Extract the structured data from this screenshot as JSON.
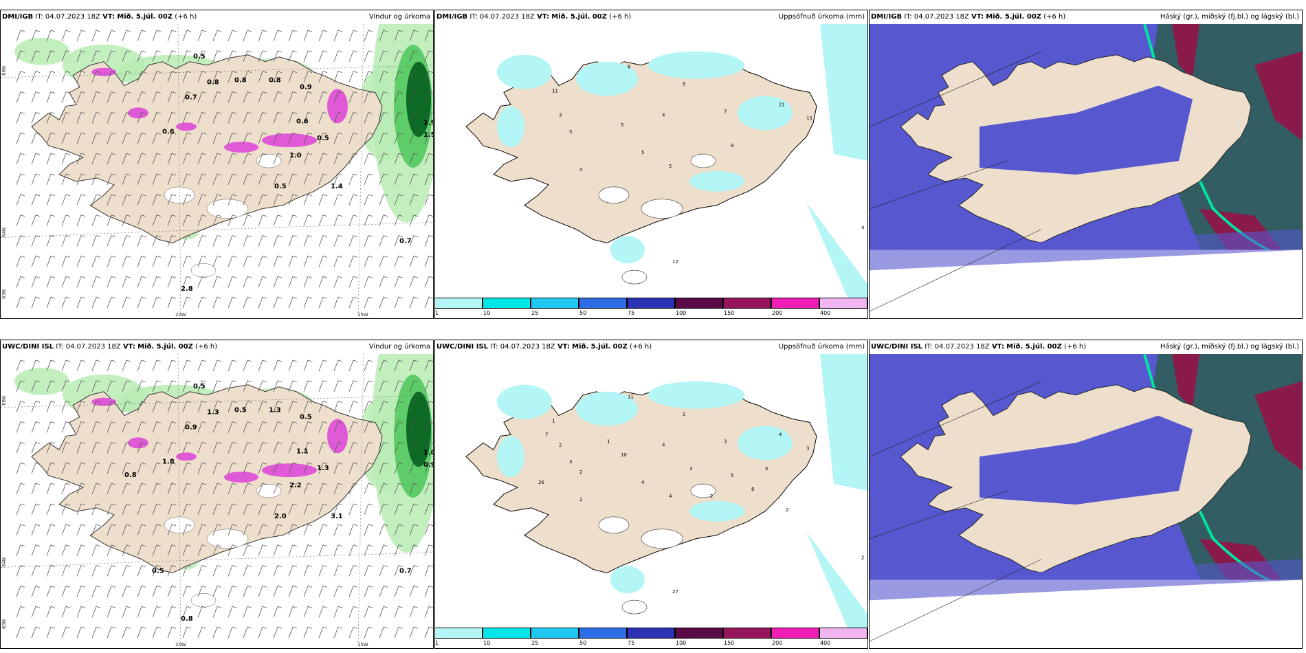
{
  "panels": [
    {
      "source": "DMI/IGB",
      "it": "IT: 04.07.2023 18Z",
      "vt_label": "VT:",
      "vt": "Mið. 5.júl. 00Z",
      "lead": "(+6 h)",
      "title": "Vindur og úrkoma",
      "type": "wind"
    },
    {
      "source": "DMI/IGB",
      "it": "IT: 04.07.2023 18Z",
      "vt_label": "VT:",
      "vt": "Mið. 5.júl. 00Z",
      "lead": "(+6 h)",
      "title": "Uppsöfnuð úrkoma (mm)",
      "type": "accum"
    },
    {
      "source": "DMI/IGB",
      "it": "IT: 04.07.2023 18Z",
      "vt_label": "VT:",
      "vt": "Mið. 5.júl. 00Z",
      "lead": "(+6 h)",
      "title": "Háský (gr.), miðský (fj.bl.) og lágský (bl.)",
      "type": "cloud"
    },
    {
      "source": "UWC/DINI ISL",
      "it": "IT: 04.07.2023 18Z",
      "vt_label": "VT:",
      "vt": "Mið. 5.júl. 00Z",
      "lead": "(+6 h)",
      "title": "Vindur og úrkoma",
      "type": "wind"
    },
    {
      "source": "UWC/DINI ISL",
      "it": "IT: 04.07.2023 18Z",
      "vt_label": "VT:",
      "vt": "Mið. 5.júl. 00Z",
      "lead": "(+6 h)",
      "title": "Uppsöfnuð úrkoma (mm)",
      "type": "accum"
    },
    {
      "source": "UWC/DINI ISL",
      "it": "IT: 04.07.2023 18Z",
      "vt_label": "VT:",
      "vt": "Mið. 5.júl. 00Z",
      "lead": "(+6 h)",
      "title": "Háský (gr.), miðský (fj.bl.) og lágský (bl.)",
      "type": "cloud"
    }
  ],
  "axis_labels": {
    "lon_20": "20W",
    "lon_15": "15W",
    "lat_66": "66N",
    "lat_64": "64N",
    "lat_63": "63N"
  },
  "colorbar": {
    "colors": [
      "#b4f5f5",
      "#00e6e6",
      "#1ec8f0",
      "#2d6ee6",
      "#2d32b4",
      "#5a0a46",
      "#96145a",
      "#f01eb4",
      "#f0b4f0"
    ],
    "ticks": [
      "1",
      "10",
      "25",
      "50",
      "75",
      "100",
      "150",
      "200",
      "400"
    ]
  },
  "wind_values_top": [
    "0.5",
    "0.7",
    "0.8",
    "0.8",
    "0.8",
    "0.9",
    "0.6",
    "0.6",
    "0.5",
    "1.0",
    "0.5",
    "1.4",
    "1.9",
    "1.5",
    "0.7",
    "2.8"
  ],
  "wind_values_bottom": [
    "0.5",
    "0.9",
    "1.3",
    "0.5",
    "1.3",
    "0.5",
    "1.8",
    "1.1",
    "1.3",
    "2.2",
    "2.0",
    "3.1",
    "1.0",
    "0.9",
    "0.7",
    "0.8",
    "0.5",
    "0.8"
  ],
  "accum_values_top": [
    "11",
    "5",
    "3",
    "6",
    "5",
    "5",
    "7",
    "4",
    "5",
    "4",
    "5",
    "9",
    "21",
    "15",
    "4",
    "12"
  ],
  "accum_values_bottom": [
    "1",
    "3",
    "2",
    "11",
    "10",
    "4",
    "3",
    "2",
    "4",
    "4",
    "2",
    "5",
    "4",
    "3",
    "2",
    "27",
    "26",
    "7",
    "2",
    "1",
    "3",
    "2",
    "8",
    "4",
    "2"
  ],
  "colors": {
    "land": "#eedfcc",
    "wind_light": "#b9ecb4",
    "wind_mid": "#5fcc6a",
    "wind_dark": "#0c6a24",
    "precip_pink": "#e05ad8",
    "accum_fill": "#b4f5f5",
    "high_cloud": "#2f5f57",
    "mid_cloud": "#8a1a4a",
    "low_cloud": "#5757d0",
    "cloud_edge": "#00e6a0"
  }
}
